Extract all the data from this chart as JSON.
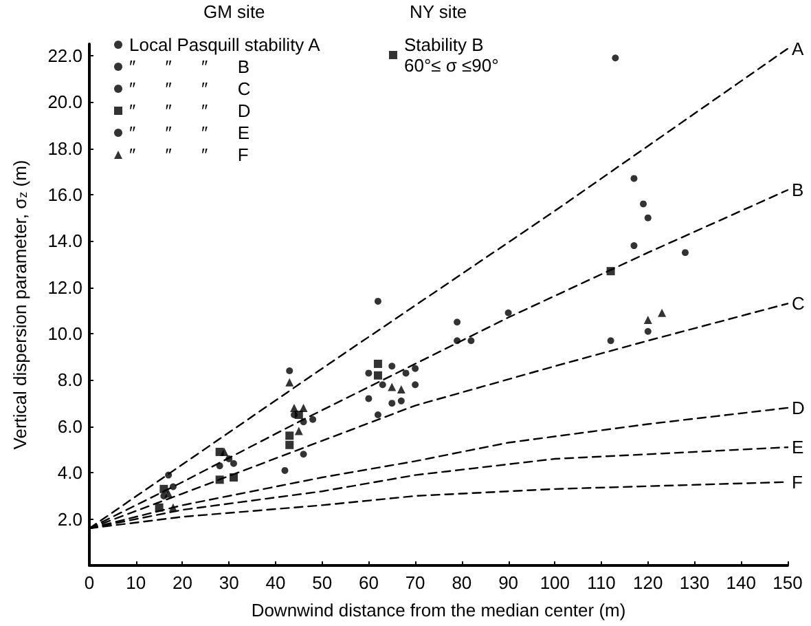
{
  "chart_data": {
    "type": "scatter",
    "xlabel": "Downwind distance from the median center (m)",
    "ylabel": "Vertical dispersion parameter, σ$_{z}$ (m)",
    "xlim": [
      0,
      150
    ],
    "xticks": [
      0,
      10,
      20,
      30,
      40,
      50,
      60,
      70,
      80,
      90,
      100,
      110,
      120,
      130,
      140,
      150
    ],
    "ylim": [
      0,
      22.5
    ],
    "yticks": [
      {
        "value": 2,
        "label": "2.0"
      },
      {
        "value": 4,
        "label": "4.0"
      },
      {
        "value": 6,
        "label": "6.0"
      },
      {
        "value": 8,
        "label": "8.0"
      },
      {
        "value": 10,
        "label": "10.0"
      },
      {
        "value": 12,
        "label": "12.0"
      },
      {
        "value": 14,
        "label": "14.0"
      },
      {
        "value": 16,
        "label": "16.0"
      },
      {
        "value": 18,
        "label": "18.0"
      },
      {
        "value": 20,
        "label": "20.0"
      },
      {
        "value": 22,
        "label": "22.0"
      }
    ],
    "grid": false,
    "legend": "top left",
    "annotations": [
      "GM site",
      "NY site"
    ],
    "series": [
      {
        "name": "Local Pasquill stability A",
        "color": "#000000",
        "marker": "circle",
        "x": [
          17,
          43,
          62,
          113,
          120,
          67
        ],
        "values": [
          3.9,
          8.4,
          11.4,
          21.9,
          15.0,
          7.1
        ]
      },
      {
        "name": "″      ″      ″      B",
        "color": "#000000",
        "marker": "circle",
        "x": [
          117,
          119,
          128,
          16,
          18,
          28,
          30,
          44,
          46,
          65,
          70
        ],
        "values": [
          16.7,
          15.6,
          13.5,
          3.0,
          3.4,
          4.3,
          4.6,
          6.5,
          6.2,
          8.6,
          8.5
        ]
      },
      {
        "name": "″      ″      ″      C",
        "color": "#000000",
        "marker": "circle",
        "x": [
          42,
          46,
          62,
          65,
          112,
          117
        ],
        "values": [
          4.1,
          4.8,
          6.5,
          7.0,
          9.7,
          13.8
        ]
      },
      {
        "name": "″      ″      ″      D",
        "color": "#000000",
        "marker": "square",
        "x": [
          15,
          28,
          28,
          31,
          43,
          43,
          62,
          112
        ],
        "values": [
          2.5,
          4.9,
          3.7,
          3.8,
          5.6,
          5.2,
          8.7,
          12.7
        ]
      },
      {
        "name": "″      ″      ″      E",
        "color": "#000000",
        "marker": "circle",
        "x": [
          31,
          48,
          60,
          60,
          63,
          68,
          70,
          79,
          79,
          82,
          90,
          120
        ],
        "values": [
          4.4,
          6.3,
          8.3,
          7.2,
          7.8,
          8.3,
          7.8,
          10.5,
          9.7,
          9.7,
          10.9,
          10.1
        ]
      },
      {
        "name": "″      ″      ″      F",
        "color": "#000000",
        "marker": "triangle",
        "x": [
          17,
          18,
          29,
          43,
          44,
          45,
          46,
          65,
          67,
          120,
          123
        ],
        "values": [
          3.1,
          2.5,
          4.9,
          7.9,
          6.8,
          5.8,
          6.8,
          7.7,
          7.6,
          10.6,
          10.9
        ]
      },
      {
        "name": "Stability B\n60°≤ σ ≤90°",
        "color": "#000000",
        "marker": "square",
        "x": [
          16,
          45,
          62
        ],
        "values": [
          3.3,
          6.5,
          8.2
        ]
      },
      {
        "name": "A",
        "type": "line",
        "line_style": "dashed",
        "marker": "none",
        "color": "#000000",
        "x": [
          0,
          50,
          100,
          150
        ],
        "values": [
          1.6,
          8.5,
          15.3,
          22.3
        ]
      },
      {
        "name": "B",
        "type": "line",
        "line_style": "dashed",
        "marker": "none",
        "color": "#000000",
        "x": [
          0,
          20,
          45,
          70,
          90,
          120,
          150
        ],
        "values": [
          1.6,
          3.6,
          6.2,
          8.7,
          10.7,
          13.5,
          16.2
        ]
      },
      {
        "name": "C",
        "type": "line",
        "line_style": "dashed",
        "marker": "none",
        "color": "#000000",
        "x": [
          0,
          20,
          45,
          70,
          100,
          120,
          150
        ],
        "values": [
          1.6,
          3.1,
          5.0,
          6.9,
          8.6,
          9.7,
          11.3
        ]
      },
      {
        "name": "D",
        "type": "line",
        "line_style": "dashed",
        "marker": "none",
        "color": "#000000",
        "x": [
          0,
          20,
          50,
          70,
          90,
          120,
          150
        ],
        "values": [
          1.6,
          2.6,
          3.8,
          4.5,
          5.3,
          6.1,
          6.8
        ]
      },
      {
        "name": "E",
        "type": "line",
        "line_style": "dashed",
        "marker": "none",
        "color": "#000000",
        "x": [
          0,
          20,
          50,
          70,
          100,
          150
        ],
        "values": [
          1.6,
          2.4,
          3.2,
          3.9,
          4.6,
          5.1
        ]
      },
      {
        "name": "F",
        "type": "line",
        "line_style": "dashed",
        "marker": "none",
        "color": "#000000",
        "x": [
          0,
          20,
          50,
          70,
          100,
          150
        ],
        "values": [
          1.6,
          2.1,
          2.6,
          3.0,
          3.3,
          3.6
        ]
      }
    ]
  }
}
